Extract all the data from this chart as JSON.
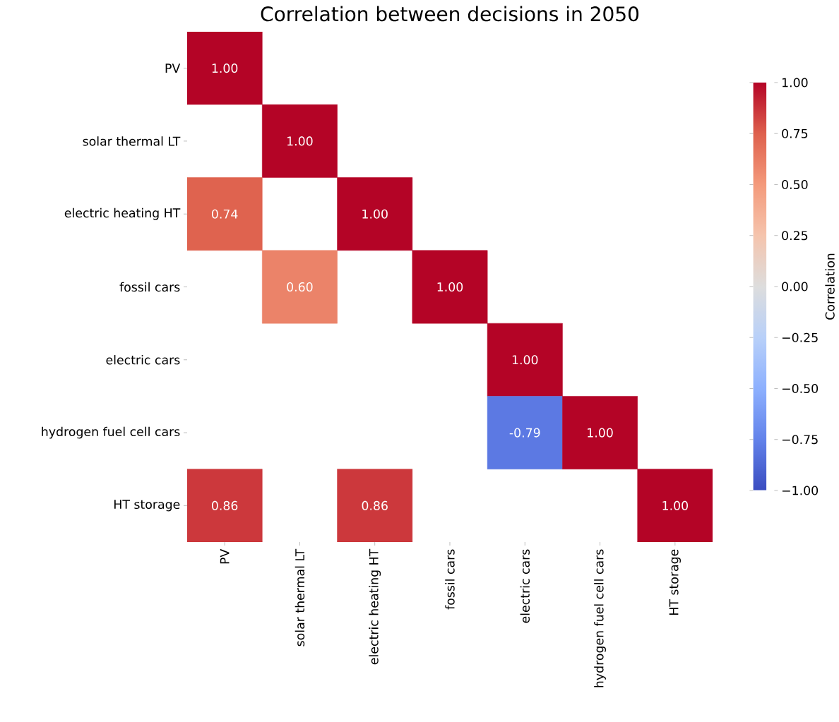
{
  "chart_data": {
    "type": "heatmap",
    "title": "Correlation between decisions in 2050",
    "categories": [
      "PV",
      "solar thermal LT",
      "electric heating HT",
      "fossil cars",
      "electric cars",
      "hydrogen fuel cell cars",
      "HT storage"
    ],
    "y_categories": [
      "PV",
      "solar thermal LT",
      "electric heating HT",
      "fossil cars",
      "electric cars",
      "hydrogen fuel cell cars",
      "HT storage"
    ],
    "cells": [
      [
        1.0,
        null,
        null,
        null,
        null,
        null,
        null
      ],
      [
        null,
        1.0,
        null,
        null,
        null,
        null,
        null
      ],
      [
        0.74,
        null,
        1.0,
        null,
        null,
        null,
        null
      ],
      [
        null,
        0.6,
        null,
        1.0,
        null,
        null,
        null
      ],
      [
        null,
        null,
        null,
        null,
        1.0,
        null,
        null
      ],
      [
        null,
        null,
        null,
        null,
        -0.79,
        1.0,
        null
      ],
      [
        0.86,
        null,
        0.86,
        null,
        null,
        null,
        1.0
      ]
    ],
    "cell_labels": [
      [
        "1.00",
        null,
        null,
        null,
        null,
        null,
        null
      ],
      [
        null,
        "1.00",
        null,
        null,
        null,
        null,
        null
      ],
      [
        "0.74",
        null,
        "1.00",
        null,
        null,
        null,
        null
      ],
      [
        null,
        "0.60",
        null,
        "1.00",
        null,
        null,
        null
      ],
      [
        null,
        null,
        null,
        null,
        "1.00",
        null,
        null
      ],
      [
        null,
        null,
        null,
        null,
        "-0.79",
        "1.00",
        null
      ],
      [
        "0.86",
        null,
        "0.86",
        null,
        null,
        null,
        "1.00"
      ]
    ],
    "clim": [
      -1,
      1
    ],
    "cticks": [
      {
        "value": -1,
        "label": "−1.00"
      },
      {
        "value": -0.75,
        "label": "−0.75"
      },
      {
        "value": -0.5,
        "label": "−0.50"
      },
      {
        "value": -0.25,
        "label": "−0.25"
      },
      {
        "value": 0,
        "label": "0.00"
      },
      {
        "value": 0.25,
        "label": "0.25"
      },
      {
        "value": 0.5,
        "label": "0.50"
      },
      {
        "value": 0.75,
        "label": "0.75"
      },
      {
        "value": 1,
        "label": "1.00"
      }
    ],
    "clabel": "Correlation"
  }
}
